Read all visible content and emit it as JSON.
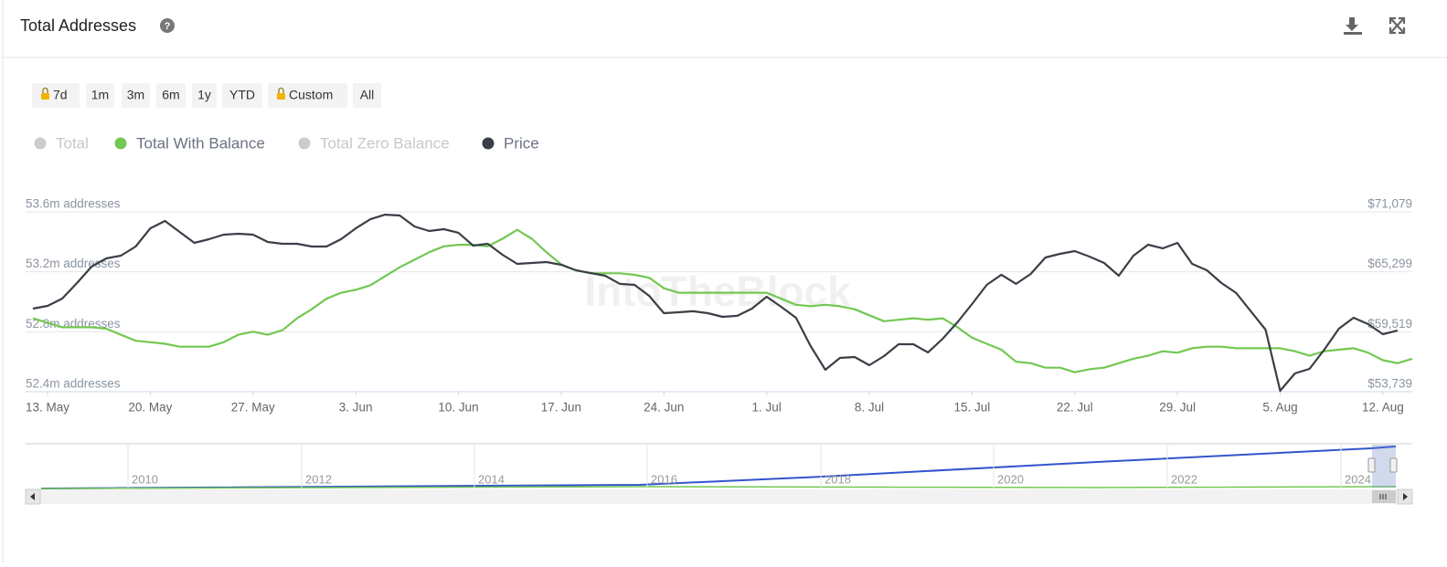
{
  "header": {
    "title": "Total Addresses"
  },
  "range_buttons": [
    "7d",
    "1m",
    "3m",
    "6m",
    "1y",
    "YTD",
    "Custom",
    "All"
  ],
  "chart_data": {
    "type": "line",
    "watermark": "IntoTheBlock",
    "categories": [
      null,
      "13. May",
      null,
      null,
      null,
      null,
      null,
      null,
      "20. May",
      null,
      null,
      null,
      null,
      null,
      null,
      "27. May",
      null,
      null,
      null,
      null,
      null,
      null,
      "3. Jun",
      null,
      null,
      null,
      null,
      null,
      null,
      "10. Jun",
      null,
      null,
      null,
      null,
      null,
      null,
      "17. Jun",
      null,
      null,
      null,
      null,
      null,
      null,
      "24. Jun",
      null,
      null,
      null,
      null,
      null,
      null,
      "1. Jul",
      null,
      null,
      null,
      null,
      null,
      null,
      "8. Jul",
      null,
      null,
      null,
      null,
      null,
      null,
      "15. Jul",
      null,
      null,
      null,
      null,
      null,
      null,
      "22. Jul",
      null,
      null,
      null,
      null,
      null,
      null,
      "29. Jul",
      null,
      null,
      null,
      null,
      null,
      null,
      "5. Aug",
      null,
      null,
      null,
      null,
      null,
      null,
      "12. Aug",
      null,
      null
    ],
    "series": [
      {
        "name": "Total",
        "color": "#cccccc",
        "visible": false
      },
      {
        "name": "Total With Balance",
        "color": "#72c852",
        "visible": true,
        "values": [
          52.89,
          52.86,
          52.83,
          52.83,
          52.83,
          52.82,
          52.78,
          52.74,
          52.73,
          52.72,
          52.7,
          52.7,
          52.7,
          52.73,
          52.78,
          52.8,
          52.78,
          52.81,
          52.89,
          52.95,
          53.02,
          53.06,
          53.08,
          53.11,
          53.17,
          53.23,
          53.28,
          53.33,
          53.37,
          53.38,
          53.38,
          53.37,
          53.42,
          53.48,
          53.42,
          53.33,
          53.25,
          53.21,
          53.19,
          53.19,
          53.19,
          53.18,
          53.16,
          53.09,
          53.06,
          53.06,
          53.06,
          53.06,
          53.06,
          53.06,
          53.06,
          53.02,
          52.98,
          52.97,
          52.98,
          52.97,
          52.95,
          52.91,
          52.87,
          52.88,
          52.89,
          52.88,
          52.89,
          52.83,
          52.76,
          52.72,
          52.68,
          52.6,
          52.59,
          52.56,
          52.56,
          52.53,
          52.55,
          52.56,
          52.59,
          52.62,
          52.64,
          52.67,
          52.66,
          52.69,
          52.7,
          52.7,
          52.69,
          52.69,
          52.69,
          52.69,
          52.67,
          52.64,
          52.67,
          52.68,
          52.69,
          52.66,
          52.61,
          52.59,
          52.62
        ]
      },
      {
        "name": "Total Zero Balance",
        "color": "#cccccc",
        "visible": false
      },
      {
        "name": "Price",
        "color": "#3a3f47",
        "visible": true,
        "axis": "y2",
        "values": [
          61750,
          62010,
          62720,
          64210,
          65800,
          66590,
          66850,
          67730,
          69490,
          70200,
          69140,
          68090,
          68440,
          68880,
          68970,
          68880,
          68170,
          68000,
          68000,
          67730,
          67730,
          68440,
          69490,
          70370,
          70810,
          70730,
          69670,
          69230,
          69410,
          69060,
          67820,
          68000,
          66940,
          66060,
          66150,
          66240,
          65970,
          65450,
          65180,
          64920,
          64130,
          64040,
          62980,
          61310,
          61400,
          61490,
          61310,
          60960,
          61050,
          61750,
          62890,
          61920,
          60870,
          58140,
          55850,
          57000,
          57080,
          56290,
          57170,
          58320,
          58320,
          57520,
          58840,
          60430,
          62190,
          64040,
          65010,
          64130,
          65090,
          66680,
          67030,
          67290,
          66770,
          66150,
          64920,
          66850,
          67910,
          67560,
          68090,
          66060,
          65450,
          64210,
          63250,
          61490,
          59720,
          53830,
          55500,
          55940,
          57790,
          59810,
          60870,
          60250,
          59280,
          59640,
          null
        ]
      }
    ],
    "ylim": [
      52.4,
      53.6
    ],
    "yticks": [
      {
        "value": 52.4,
        "label": "52.4m addresses"
      },
      {
        "value": 52.8,
        "label": "52.8m addresses"
      },
      {
        "value": 53.2,
        "label": "53.2m addresses"
      },
      {
        "value": 53.6,
        "label": "53.6m addresses"
      }
    ],
    "y2lim": [
      53739,
      71079
    ],
    "y2ticks": [
      {
        "value": 53739,
        "label": "$53,739"
      },
      {
        "value": 59519,
        "label": "$59,519"
      },
      {
        "value": 65299,
        "label": "$65,299"
      },
      {
        "value": 71079,
        "label": "$71,079"
      }
    ],
    "grid": true
  },
  "navigator": {
    "years": [
      "2010",
      "2012",
      "2014",
      "2016",
      "2018",
      "2020",
      "2022",
      "2024"
    ]
  }
}
